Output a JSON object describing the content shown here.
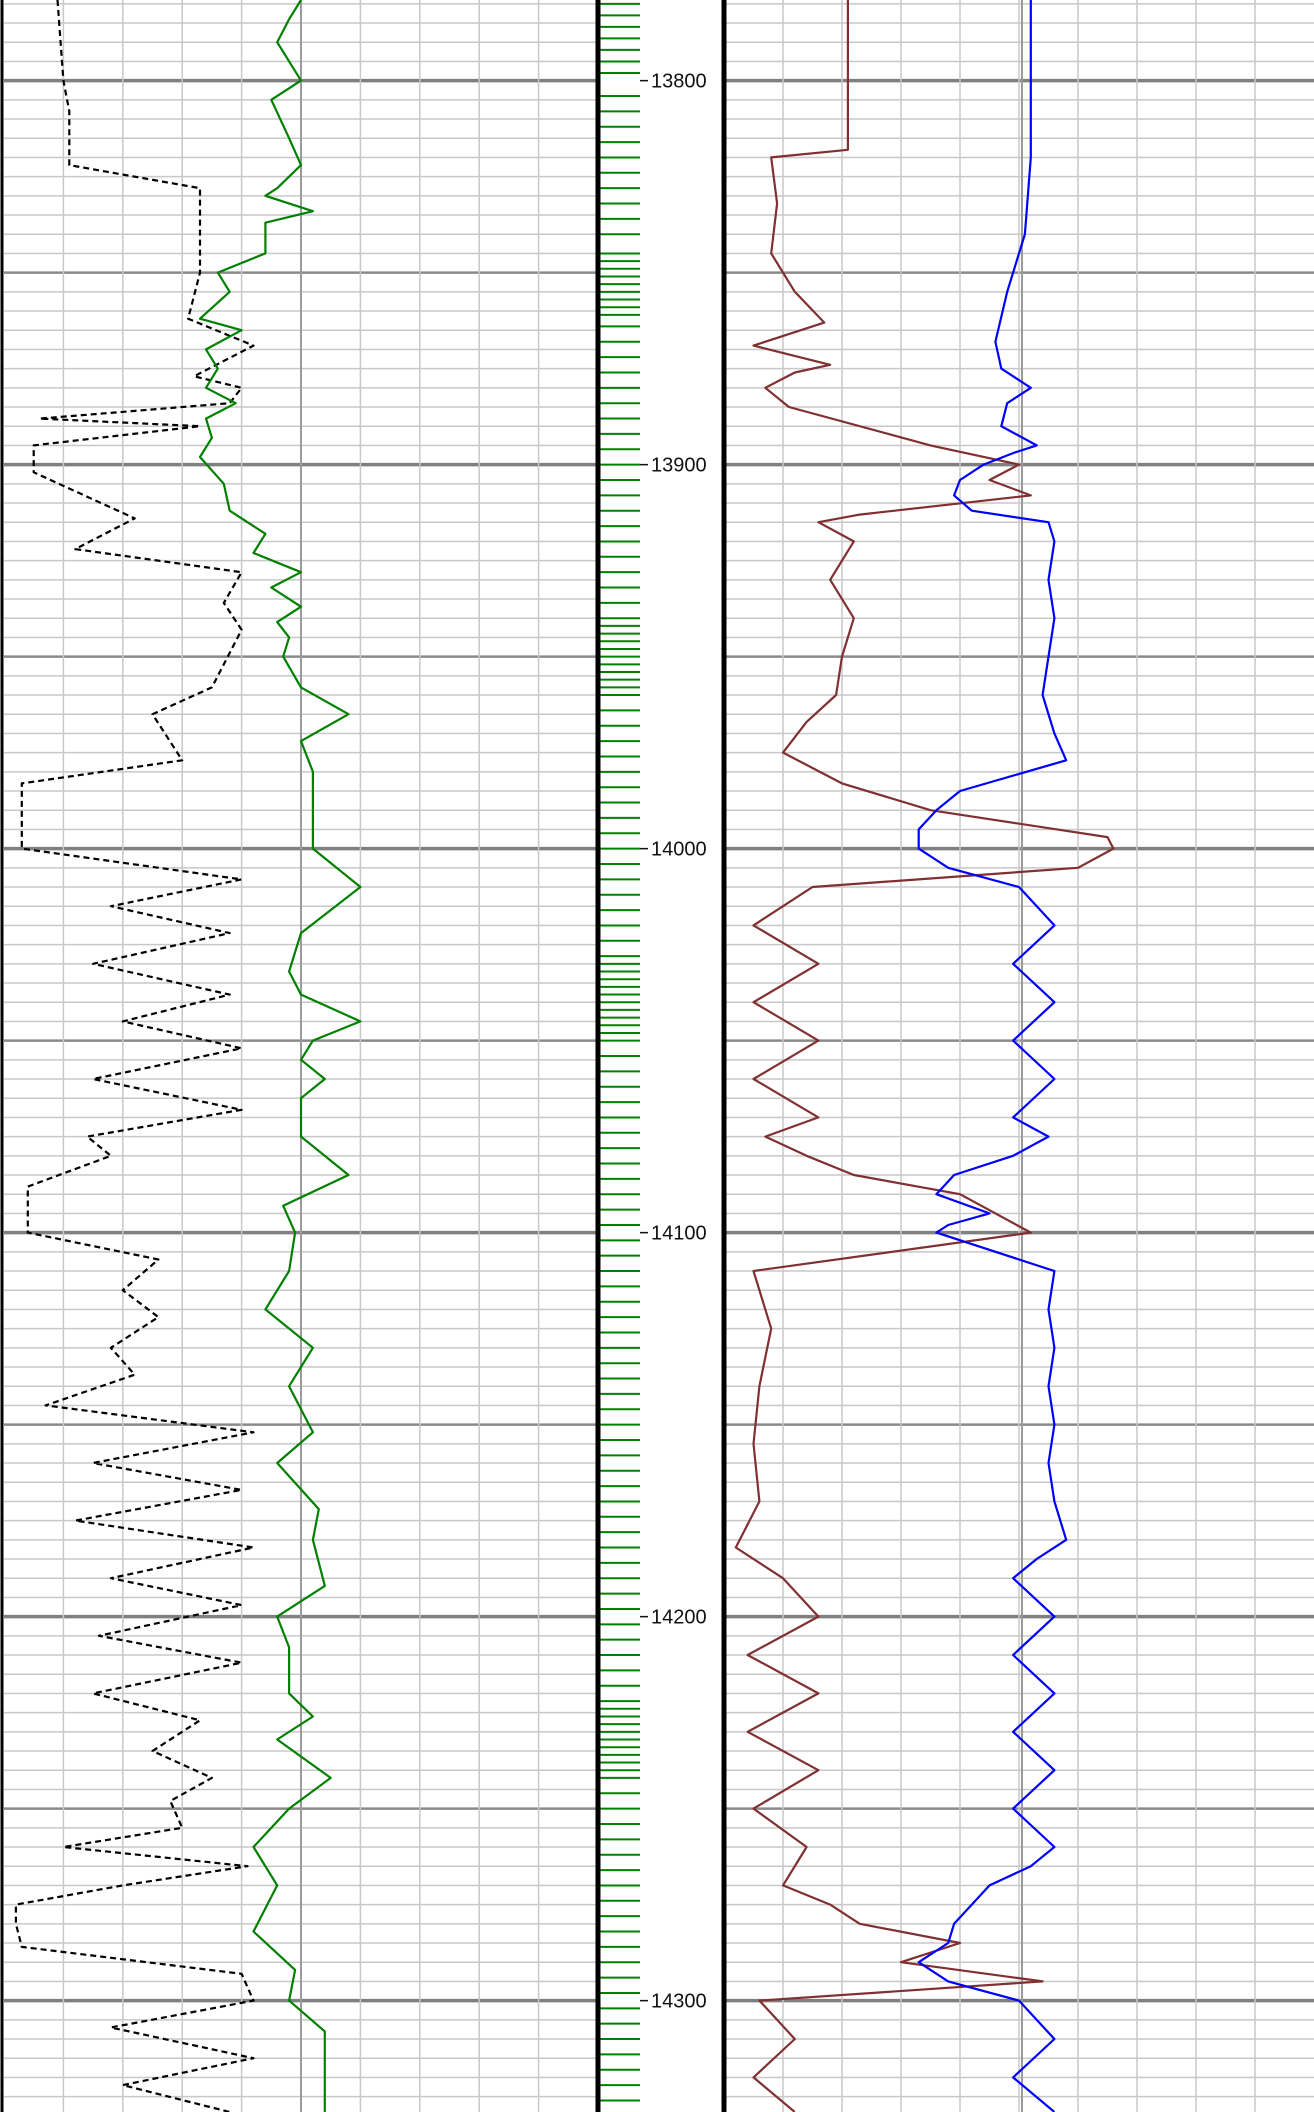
{
  "chart_data": [
    {
      "type": "line",
      "title": "",
      "y_axis": "depth",
      "ylim": [
        13779,
        14329
      ],
      "grid": true,
      "series": [
        {
          "color": "#000000",
          "dashed": true,
          "depth": [
            13779,
            13800,
            13808,
            13822,
            13828,
            13850,
            13862,
            13869,
            13877,
            13880,
            13884,
            13888,
            13890,
            13895,
            13898,
            13902,
            13914,
            13922,
            13928,
            13936,
            13943,
            13958,
            13965,
            13977,
            13983,
            13987,
            14000,
            14008,
            14015,
            14022,
            14030,
            14038,
            14045,
            14052,
            14060,
            14068,
            14075,
            14080,
            14088,
            14100,
            14107,
            14115,
            14122,
            14130,
            14137,
            14145,
            14152,
            14160,
            14167,
            14175,
            14182,
            14190,
            14197,
            14205,
            14212,
            14220,
            14227,
            14235,
            14242,
            14248,
            14255,
            14260,
            14265,
            14270,
            14275,
            14280,
            14286,
            14293,
            14300,
            14307,
            14315,
            14322,
            14329
          ],
          "values": [
            0.09,
            0.1,
            0.11,
            0.11,
            0.33,
            0.33,
            0.31,
            0.42,
            0.32,
            0.4,
            0.38,
            0.06,
            0.33,
            0.05,
            0.05,
            0.05,
            0.22,
            0.12,
            0.4,
            0.37,
            0.4,
            0.35,
            0.25,
            0.3,
            0.03,
            0.03,
            0.03,
            0.4,
            0.18,
            0.38,
            0.15,
            0.38,
            0.2,
            0.4,
            0.15,
            0.4,
            0.14,
            0.18,
            0.04,
            0.04,
            0.26,
            0.2,
            0.26,
            0.18,
            0.22,
            0.07,
            0.42,
            0.15,
            0.4,
            0.12,
            0.42,
            0.18,
            0.4,
            0.16,
            0.4,
            0.15,
            0.33,
            0.25,
            0.35,
            0.28,
            0.3,
            0.1,
            0.41,
            0.2,
            0.02,
            0.02,
            0.03,
            0.4,
            0.42,
            0.18,
            0.42,
            0.2,
            0.38
          ]
        },
        {
          "color": "#008000",
          "dashed": false,
          "depth": [
            13779,
            13784,
            13790,
            13800,
            13805,
            13815,
            13822,
            13828,
            13830,
            13834,
            13837,
            13845,
            13850,
            13855,
            13862,
            13865,
            13870,
            13875,
            13880,
            13884,
            13888,
            13893,
            13898,
            13905,
            13912,
            13918,
            13923,
            13928,
            13932,
            13937,
            13941,
            13945,
            13950,
            13958,
            13965,
            13972,
            13980,
            13988,
            14000,
            14010,
            14022,
            14032,
            14038,
            14045,
            14050,
            14055,
            14060,
            14065,
            14075,
            14085,
            14093,
            14100,
            14110,
            14120,
            14130,
            14140,
            14152,
            14160,
            14172,
            14180,
            14192,
            14200,
            14208,
            14220,
            14226,
            14232,
            14242,
            14250,
            14260,
            14270,
            14282,
            14292,
            14300,
            14308,
            14316,
            14329
          ],
          "values": [
            0.5,
            0.48,
            0.46,
            0.5,
            0.45,
            0.48,
            0.5,
            0.46,
            0.44,
            0.52,
            0.44,
            0.44,
            0.36,
            0.38,
            0.33,
            0.4,
            0.34,
            0.36,
            0.34,
            0.39,
            0.34,
            0.35,
            0.33,
            0.37,
            0.38,
            0.44,
            0.42,
            0.5,
            0.45,
            0.5,
            0.46,
            0.48,
            0.47,
            0.5,
            0.58,
            0.5,
            0.52,
            0.52,
            0.52,
            0.6,
            0.5,
            0.48,
            0.5,
            0.6,
            0.52,
            0.5,
            0.54,
            0.5,
            0.5,
            0.58,
            0.47,
            0.49,
            0.48,
            0.44,
            0.52,
            0.48,
            0.52,
            0.46,
            0.53,
            0.52,
            0.54,
            0.46,
            0.48,
            0.48,
            0.52,
            0.46,
            0.55,
            0.48,
            0.42,
            0.46,
            0.42,
            0.49,
            0.48,
            0.54,
            0.54,
            0.54
          ]
        },
        {
          "color": "#803030",
          "dashed": false,
          "depth": [
            13779,
            13795,
            13818,
            13820,
            13832,
            13845,
            13855,
            13863,
            13869,
            13874,
            13876,
            13880,
            13885,
            13895,
            13900,
            13904,
            13908,
            13913,
            13915,
            13920,
            13930,
            13940,
            13950,
            13960,
            13967,
            13975,
            13983,
            13990,
            13997,
            14000,
            14005,
            14010,
            14020,
            14030,
            14040,
            14050,
            14060,
            14070,
            14075,
            14080,
            14085,
            14090,
            14100,
            14110,
            14125,
            14140,
            14155,
            14170,
            14182,
            14190,
            14200,
            14210,
            14220,
            14230,
            14240,
            14250,
            14260,
            14270,
            14275,
            14280,
            14285,
            14290,
            14295,
            14300,
            14310,
            14320,
            14329
          ],
          "values": [
            0.21,
            0.21,
            0.21,
            0.08,
            0.09,
            0.08,
            0.12,
            0.17,
            0.05,
            0.18,
            0.12,
            0.07,
            0.11,
            0.35,
            0.5,
            0.45,
            0.52,
            0.23,
            0.16,
            0.22,
            0.18,
            0.22,
            0.2,
            0.19,
            0.14,
            0.1,
            0.2,
            0.35,
            0.65,
            0.66,
            0.6,
            0.15,
            0.05,
            0.16,
            0.05,
            0.16,
            0.05,
            0.16,
            0.07,
            0.14,
            0.22,
            0.4,
            0.52,
            0.05,
            0.08,
            0.06,
            0.05,
            0.06,
            0.02,
            0.1,
            0.16,
            0.04,
            0.16,
            0.04,
            0.16,
            0.05,
            0.14,
            0.1,
            0.18,
            0.23,
            0.4,
            0.3,
            0.54,
            0.06,
            0.12,
            0.05,
            0.12
          ]
        },
        {
          "color": "#0000ff",
          "dashed": false,
          "depth": [
            13779,
            13820,
            13840,
            13855,
            13868,
            13875,
            13880,
            13884,
            13890,
            13895,
            13897,
            13900,
            13904,
            13908,
            13912,
            13915,
            13920,
            13930,
            13940,
            13950,
            13960,
            13970,
            13977,
            13985,
            13990,
            13995,
            14000,
            14005,
            14010,
            14020,
            14030,
            14040,
            14050,
            14060,
            14070,
            14075,
            14080,
            14085,
            14090,
            14095,
            14098,
            14100,
            14110,
            14120,
            14130,
            14140,
            14150,
            14160,
            14170,
            14180,
            14185,
            14190,
            14200,
            14210,
            14220,
            14230,
            14240,
            14250,
            14260,
            14265,
            14270,
            14280,
            14285,
            14290,
            14295,
            14300,
            14310,
            14320,
            14329
          ],
          "values": [
            0.52,
            0.52,
            0.51,
            0.48,
            0.46,
            0.47,
            0.52,
            0.48,
            0.47,
            0.53,
            0.49,
            0.44,
            0.4,
            0.39,
            0.42,
            0.55,
            0.56,
            0.55,
            0.56,
            0.55,
            0.54,
            0.56,
            0.58,
            0.4,
            0.36,
            0.33,
            0.33,
            0.38,
            0.5,
            0.56,
            0.49,
            0.56,
            0.49,
            0.56,
            0.49,
            0.55,
            0.49,
            0.39,
            0.36,
            0.45,
            0.38,
            0.36,
            0.56,
            0.55,
            0.56,
            0.55,
            0.56,
            0.55,
            0.56,
            0.58,
            0.53,
            0.49,
            0.56,
            0.49,
            0.56,
            0.49,
            0.56,
            0.49,
            0.56,
            0.52,
            0.45,
            0.39,
            0.38,
            0.33,
            0.38,
            0.5,
            0.56,
            0.49,
            0.56
          ]
        }
      ],
      "lithology_ticks": {
        "color": "#008000",
        "depths": [
          13780,
          13783,
          13786,
          13789,
          13792,
          13795,
          13798,
          13804,
          13808,
          13812,
          13816,
          13820,
          13824,
          13828,
          13832,
          13836,
          13840,
          13845,
          13847,
          13849,
          13851,
          13853,
          13855,
          13857,
          13859,
          13861,
          13864,
          13868,
          13872,
          13876,
          13880,
          13884,
          13888,
          13892,
          13896,
          13900,
          13904,
          13908,
          13912,
          13916,
          13920,
          13924,
          13928,
          13932,
          13936,
          13940,
          13942,
          13944,
          13946,
          13948,
          13950,
          13952,
          13954,
          13956,
          13958,
          13960,
          13964,
          13968,
          13972,
          13976,
          13980,
          13984,
          13988,
          13992,
          13996,
          14000,
          14004,
          14008,
          14012,
          14016,
          14020,
          14024,
          14028,
          14030,
          14032,
          14034,
          14036,
          14038,
          14040,
          14042,
          14044,
          14046,
          14048,
          14050,
          14054,
          14058,
          14062,
          14066,
          14070,
          14074,
          14078,
          14082,
          14086,
          14090,
          14094,
          14098,
          14102,
          14106,
          14110,
          14114,
          14118,
          14122,
          14126,
          14130,
          14134,
          14138,
          14142,
          14146,
          14150,
          14154,
          14158,
          14162,
          14166,
          14170,
          14174,
          14178,
          14182,
          14186,
          14190,
          14194,
          14198,
          14202,
          14206,
          14210,
          14214,
          14218,
          14222,
          14224,
          14226,
          14228,
          14230,
          14232,
          14234,
          14236,
          14238,
          14240,
          14242,
          14246,
          14250,
          14254,
          14258,
          14262,
          14266,
          14270,
          14274,
          14278,
          14282,
          14286,
          14290,
          14294,
          14298,
          14302,
          14306,
          14310,
          14314,
          14318,
          14322,
          14326
        ]
      },
      "depth_track": {
        "labels": [
          "13800",
          "13900",
          "14000",
          "14100",
          "14200",
          "14300"
        ],
        "depths": [
          13800,
          13900,
          14000,
          14100,
          14200,
          14300
        ]
      }
    }
  ]
}
